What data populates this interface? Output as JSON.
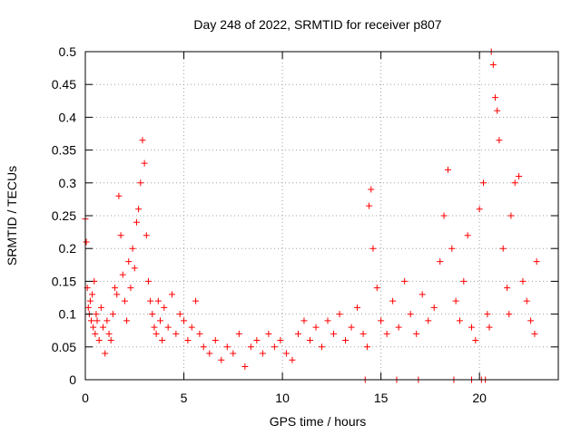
{
  "chart_data": {
    "type": "scatter",
    "title": "Day 248 of 2022, SRMTID for receiver p807",
    "xlabel": "GPS time / hours",
    "ylabel": "SRMTID / TECUs",
    "xlim": [
      0,
      24
    ],
    "ylim": [
      0,
      0.5
    ],
    "xticks": [
      0,
      5,
      10,
      15,
      20
    ],
    "yticks": [
      0,
      0.05,
      0.1,
      0.15,
      0.2,
      0.25,
      0.3,
      0.35,
      0.4,
      0.45,
      0.5
    ],
    "xtick_labels": [
      "0",
      "5",
      "10",
      "15",
      "20"
    ],
    "ytick_labels": [
      "0",
      "0.05",
      "0.1",
      "0.15",
      "0.2",
      "0.25",
      "0.3",
      "0.35",
      "0.4",
      "0.45",
      "0.5"
    ],
    "grid": true,
    "marker": "+",
    "series": [
      {
        "name": "SRMTID",
        "color": "#ff0000",
        "x": [
          0.0,
          0.05,
          0.1,
          0.15,
          0.2,
          0.25,
          0.3,
          0.35,
          0.4,
          0.45,
          0.5,
          0.55,
          0.6,
          0.7,
          0.8,
          0.9,
          1.0,
          1.1,
          1.2,
          1.3,
          1.4,
          1.5,
          1.6,
          1.7,
          1.8,
          1.9,
          2.0,
          2.1,
          2.2,
          2.3,
          2.4,
          2.5,
          2.6,
          2.7,
          2.8,
          2.9,
          3.0,
          3.1,
          3.2,
          3.3,
          3.4,
          3.5,
          3.6,
          3.7,
          3.8,
          3.9,
          4.0,
          4.2,
          4.4,
          4.6,
          4.8,
          5.0,
          5.2,
          5.4,
          5.6,
          5.8,
          6.0,
          6.3,
          6.6,
          6.9,
          7.2,
          7.5,
          7.8,
          8.1,
          8.4,
          8.7,
          9.0,
          9.3,
          9.6,
          9.9,
          10.2,
          10.5,
          10.8,
          11.1,
          11.4,
          11.7,
          12.0,
          12.3,
          12.6,
          12.9,
          13.2,
          13.5,
          13.8,
          14.1,
          14.3,
          14.4,
          14.5,
          14.6,
          14.8,
          15.0,
          15.3,
          15.6,
          15.9,
          16.2,
          16.5,
          16.8,
          17.1,
          17.4,
          17.7,
          18.0,
          18.2,
          18.4,
          18.6,
          18.8,
          19.0,
          19.2,
          19.4,
          19.6,
          19.8,
          20.0,
          20.2,
          20.4,
          20.5,
          20.6,
          20.7,
          20.8,
          20.9,
          21.0,
          21.2,
          21.4,
          21.5,
          21.6,
          21.8,
          22.0,
          22.2,
          22.4,
          22.6,
          22.8,
          22.9,
          14.2,
          15.8,
          16.9,
          18.7,
          19.6,
          20.1,
          20.3
        ],
        "y": [
          0.245,
          0.21,
          0.14,
          0.11,
          0.1,
          0.12,
          0.09,
          0.13,
          0.08,
          0.15,
          0.07,
          0.1,
          0.09,
          0.06,
          0.11,
          0.08,
          0.04,
          0.09,
          0.07,
          0.06,
          0.1,
          0.14,
          0.13,
          0.28,
          0.22,
          0.16,
          0.12,
          0.09,
          0.18,
          0.14,
          0.2,
          0.17,
          0.24,
          0.26,
          0.3,
          0.365,
          0.33,
          0.22,
          0.15,
          0.12,
          0.1,
          0.08,
          0.07,
          0.12,
          0.09,
          0.06,
          0.11,
          0.08,
          0.13,
          0.07,
          0.1,
          0.09,
          0.06,
          0.08,
          0.12,
          0.07,
          0.05,
          0.04,
          0.06,
          0.03,
          0.05,
          0.04,
          0.07,
          0.02,
          0.05,
          0.06,
          0.04,
          0.07,
          0.05,
          0.06,
          0.04,
          0.03,
          0.07,
          0.09,
          0.06,
          0.08,
          0.05,
          0.09,
          0.07,
          0.1,
          0.06,
          0.08,
          0.11,
          0.07,
          0.05,
          0.265,
          0.29,
          0.2,
          0.14,
          0.09,
          0.07,
          0.12,
          0.08,
          0.15,
          0.1,
          0.07,
          0.13,
          0.09,
          0.11,
          0.18,
          0.25,
          0.32,
          0.2,
          0.12,
          0.09,
          0.15,
          0.22,
          0.08,
          0.06,
          0.26,
          0.3,
          0.1,
          0.08,
          0.5,
          0.48,
          0.43,
          0.41,
          0.365,
          0.2,
          0.14,
          0.1,
          0.25,
          0.3,
          0.31,
          0.15,
          0.12,
          0.09,
          0.07,
          0.18,
          0.0,
          0.0,
          0.0,
          0.0,
          0.0,
          0.0,
          0.0
        ]
      }
    ]
  }
}
